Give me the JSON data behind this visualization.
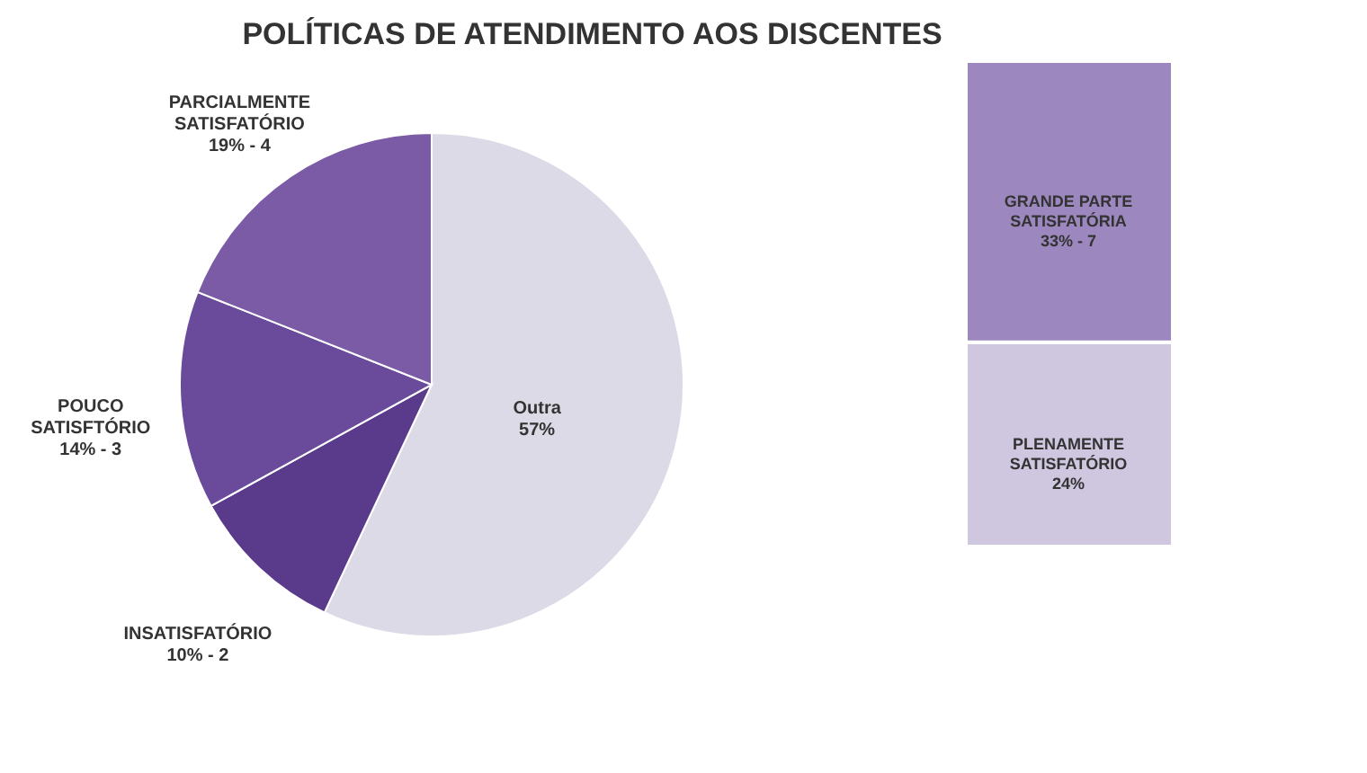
{
  "chart_data": [
    {
      "type": "pie",
      "title": "POLÍTICAS DE ATENDIMENTO AOS DISCENTES",
      "categories": [
        "Outra",
        "INSATISFATÓRIO",
        "POUCO SATISFTÓRIO",
        "PARCIALMENTE SATISFATÓRIO"
      ],
      "values": [
        57,
        10,
        14,
        19
      ],
      "colors": [
        "#dcdae6",
        "#5a3a8a",
        "#6a4a9a",
        "#7b5aa6"
      ],
      "value_labels": [
        "57%",
        "10%  - 2",
        "14%  - 3",
        "19%  - 4"
      ]
    },
    {
      "type": "bar",
      "stacked": true,
      "categories": [
        null
      ],
      "series": [
        {
          "name": "PLENAMENTE SATISFATÓRIO",
          "color": "#cfc6df",
          "values": [
            24
          ],
          "value_labels": [
            "24%"
          ]
        },
        {
          "name": "GRANDE PARTE SATISFATÓRIA",
          "color": "#9c88bf",
          "values": [
            33
          ],
          "value_labels": [
            "33%  - 7"
          ]
        }
      ]
    }
  ]
}
